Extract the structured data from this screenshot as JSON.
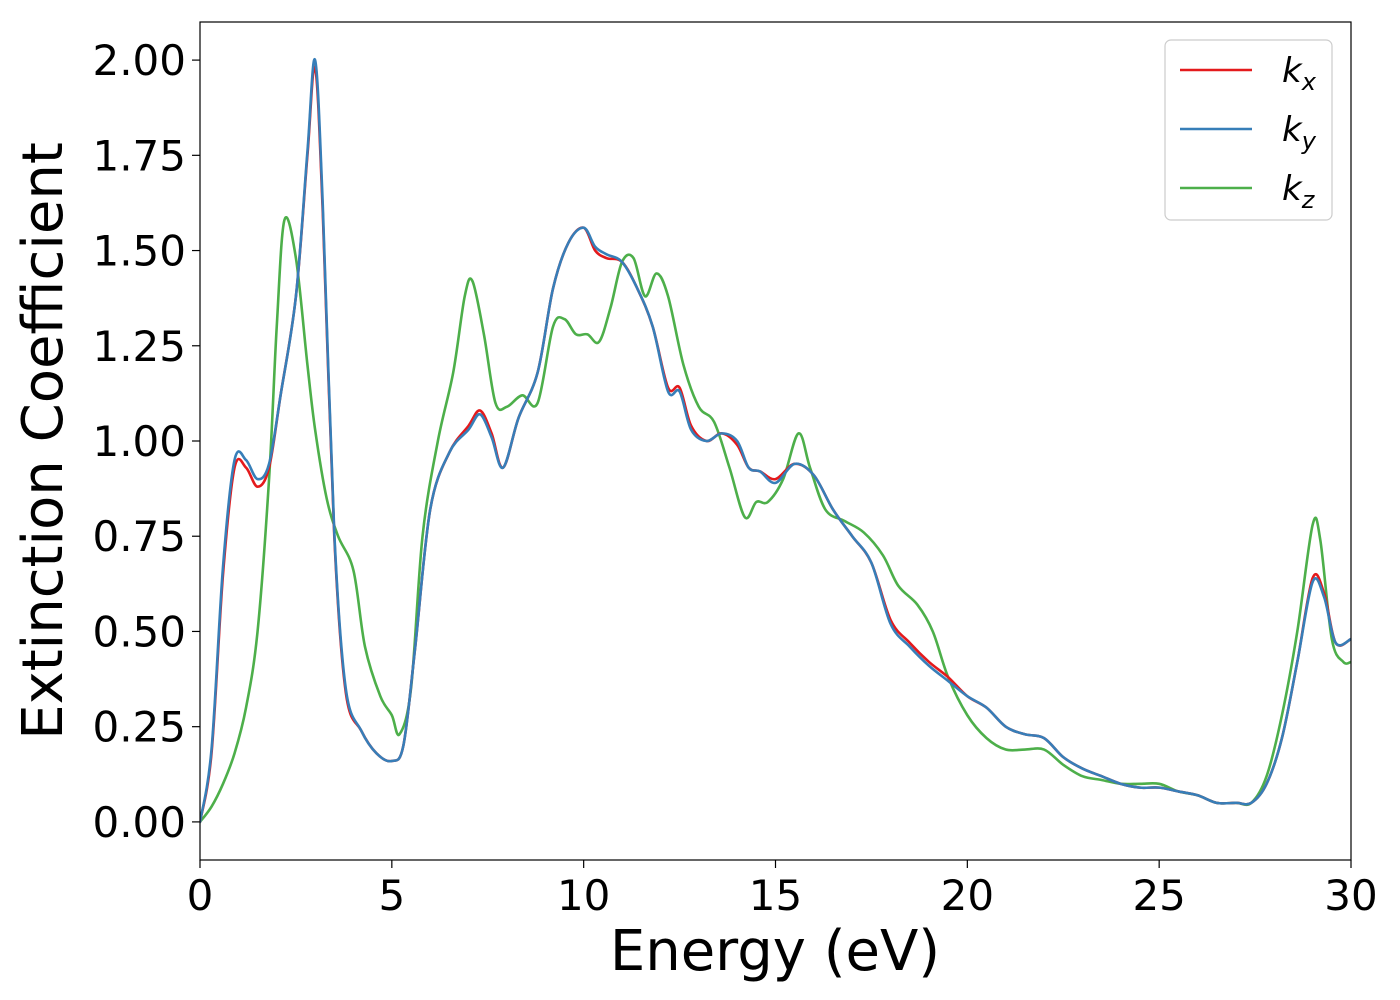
{
  "chart_data": {
    "type": "line",
    "xlabel": "Energy (eV)",
    "ylabel": "Extinction Coefficient",
    "xlim": [
      0,
      30
    ],
    "ylim": [
      -0.1,
      2.1
    ],
    "xticks": [
      0,
      5,
      10,
      15,
      20,
      25,
      30
    ],
    "yticks": [
      0.0,
      0.25,
      0.5,
      0.75,
      1.0,
      1.25,
      1.5,
      1.75,
      2.0
    ],
    "xtick_labels": [
      "0",
      "5",
      "10",
      "15",
      "20",
      "25",
      "30"
    ],
    "ytick_labels": [
      "0.00",
      "0.25",
      "0.50",
      "0.75",
      "1.00",
      "1.25",
      "1.50",
      "1.75",
      "2.00"
    ],
    "grid": false,
    "legend_position": "top-right",
    "series": [
      {
        "name": "k_x",
        "label_base": "k",
        "label_sub": "x",
        "color": "#e41a1c",
        "x": [
          0,
          0.3,
          0.6,
          0.9,
          1.2,
          1.5,
          1.8,
          2.1,
          2.5,
          2.8,
          3.0,
          3.2,
          3.5,
          3.8,
          4.2,
          4.6,
          5.0,
          5.3,
          5.6,
          6.0,
          6.5,
          7.0,
          7.3,
          7.6,
          7.9,
          8.3,
          8.8,
          9.2,
          9.6,
          10.0,
          10.3,
          10.6,
          11.0,
          11.4,
          11.8,
          12.2,
          12.5,
          12.8,
          13.2,
          13.6,
          14.0,
          14.3,
          14.6,
          15.0,
          15.5,
          16.0,
          16.5,
          17.0,
          17.5,
          18.0,
          18.5,
          19.0,
          19.5,
          20.0,
          20.5,
          21.0,
          21.5,
          22.0,
          22.5,
          23.0,
          23.5,
          24.0,
          24.5,
          25.0,
          25.5,
          26.0,
          26.5,
          27.0,
          27.4,
          27.8,
          28.2,
          28.6,
          29.0,
          29.3,
          29.6,
          30.0
        ],
        "y": [
          0.0,
          0.18,
          0.65,
          0.93,
          0.93,
          0.88,
          0.93,
          1.12,
          1.38,
          1.75,
          1.98,
          1.6,
          0.75,
          0.34,
          0.24,
          0.18,
          0.16,
          0.2,
          0.45,
          0.82,
          0.97,
          1.04,
          1.08,
          1.02,
          0.93,
          1.06,
          1.18,
          1.4,
          1.52,
          1.56,
          1.5,
          1.48,
          1.47,
          1.4,
          1.3,
          1.14,
          1.14,
          1.04,
          1.0,
          1.02,
          0.99,
          0.93,
          0.92,
          0.9,
          0.94,
          0.91,
          0.82,
          0.75,
          0.68,
          0.53,
          0.47,
          0.42,
          0.38,
          0.33,
          0.3,
          0.25,
          0.23,
          0.22,
          0.17,
          0.14,
          0.12,
          0.1,
          0.09,
          0.09,
          0.08,
          0.07,
          0.05,
          0.05,
          0.05,
          0.1,
          0.22,
          0.42,
          0.64,
          0.6,
          0.47,
          0.48
        ]
      },
      {
        "name": "k_y",
        "label_base": "k",
        "label_sub": "y",
        "color": "#377eb8",
        "x": [
          0,
          0.3,
          0.6,
          0.9,
          1.2,
          1.5,
          1.8,
          2.1,
          2.5,
          2.8,
          3.0,
          3.2,
          3.5,
          3.8,
          4.2,
          4.6,
          5.0,
          5.3,
          5.6,
          6.0,
          6.5,
          7.0,
          7.3,
          7.6,
          7.9,
          8.3,
          8.8,
          9.2,
          9.6,
          10.0,
          10.3,
          10.6,
          11.0,
          11.4,
          11.8,
          12.2,
          12.5,
          12.8,
          13.2,
          13.6,
          14.0,
          14.3,
          14.6,
          15.0,
          15.5,
          16.0,
          16.5,
          17.0,
          17.5,
          18.0,
          18.5,
          19.0,
          19.5,
          20.0,
          20.5,
          21.0,
          21.5,
          22.0,
          22.5,
          23.0,
          23.5,
          24.0,
          24.5,
          25.0,
          25.5,
          26.0,
          26.5,
          27.0,
          27.4,
          27.8,
          28.2,
          28.6,
          29.0,
          29.3,
          29.6,
          30.0
        ],
        "y": [
          0.0,
          0.19,
          0.67,
          0.95,
          0.95,
          0.9,
          0.94,
          1.12,
          1.38,
          1.76,
          2.0,
          1.62,
          0.76,
          0.35,
          0.24,
          0.18,
          0.16,
          0.2,
          0.45,
          0.82,
          0.97,
          1.03,
          1.07,
          1.01,
          0.93,
          1.06,
          1.18,
          1.4,
          1.52,
          1.56,
          1.51,
          1.49,
          1.47,
          1.4,
          1.3,
          1.13,
          1.13,
          1.03,
          1.0,
          1.02,
          1.0,
          0.93,
          0.92,
          0.89,
          0.94,
          0.91,
          0.82,
          0.75,
          0.68,
          0.52,
          0.46,
          0.41,
          0.37,
          0.33,
          0.3,
          0.25,
          0.23,
          0.22,
          0.17,
          0.14,
          0.12,
          0.1,
          0.09,
          0.09,
          0.08,
          0.07,
          0.05,
          0.05,
          0.05,
          0.1,
          0.22,
          0.42,
          0.63,
          0.59,
          0.47,
          0.48
        ]
      },
      {
        "name": "k_z",
        "label_base": "k",
        "label_sub": "z",
        "color": "#4daf4a",
        "x": [
          0,
          0.3,
          0.6,
          0.9,
          1.2,
          1.5,
          1.8,
          2.0,
          2.2,
          2.5,
          2.8,
          3.0,
          3.3,
          3.6,
          4.0,
          4.3,
          4.7,
          5.0,
          5.2,
          5.5,
          5.8,
          6.2,
          6.6,
          6.9,
          7.1,
          7.4,
          7.7,
          8.0,
          8.4,
          8.8,
          9.2,
          9.5,
          9.8,
          10.1,
          10.4,
          10.7,
          11.0,
          11.3,
          11.6,
          11.9,
          12.2,
          12.6,
          13.0,
          13.4,
          13.8,
          14.2,
          14.5,
          14.8,
          15.2,
          15.6,
          15.9,
          16.3,
          16.8,
          17.3,
          17.8,
          18.2,
          18.7,
          19.1,
          19.5,
          20.0,
          20.5,
          21.0,
          21.5,
          22.0,
          22.5,
          23.0,
          23.5,
          24.0,
          24.5,
          25.0,
          25.5,
          26.0,
          26.5,
          27.0,
          27.4,
          27.8,
          28.2,
          28.6,
          29.0,
          29.2,
          29.5,
          29.8,
          30.0
        ],
        "y": [
          0.0,
          0.04,
          0.1,
          0.18,
          0.3,
          0.5,
          0.9,
          1.3,
          1.58,
          1.48,
          1.2,
          1.03,
          0.85,
          0.75,
          0.66,
          0.46,
          0.33,
          0.28,
          0.23,
          0.35,
          0.75,
          1.0,
          1.18,
          1.38,
          1.42,
          1.28,
          1.1,
          1.09,
          1.12,
          1.1,
          1.3,
          1.32,
          1.28,
          1.28,
          1.26,
          1.35,
          1.47,
          1.48,
          1.38,
          1.44,
          1.38,
          1.2,
          1.09,
          1.05,
          0.93,
          0.8,
          0.84,
          0.84,
          0.9,
          1.02,
          0.93,
          0.82,
          0.79,
          0.76,
          0.7,
          0.62,
          0.57,
          0.5,
          0.38,
          0.28,
          0.22,
          0.19,
          0.19,
          0.19,
          0.15,
          0.12,
          0.11,
          0.1,
          0.1,
          0.1,
          0.08,
          0.07,
          0.05,
          0.05,
          0.05,
          0.12,
          0.28,
          0.5,
          0.78,
          0.74,
          0.48,
          0.42,
          0.42
        ]
      }
    ]
  }
}
